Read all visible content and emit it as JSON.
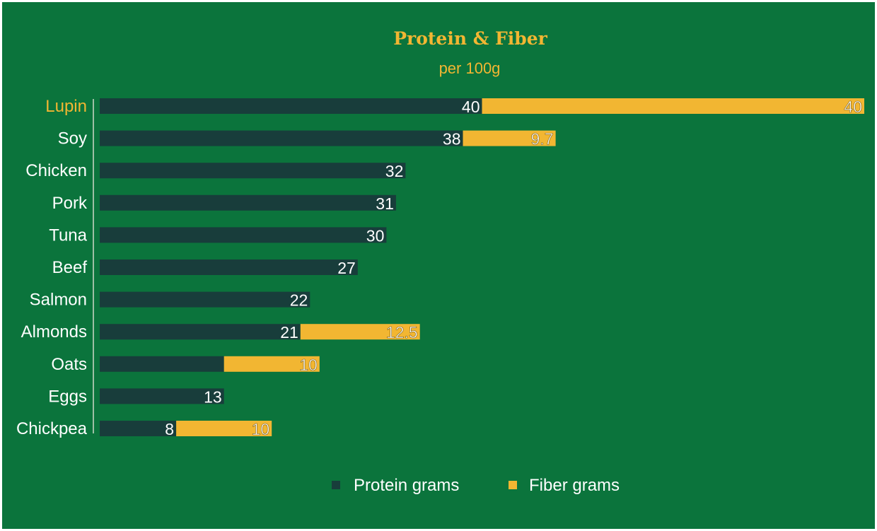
{
  "chart_data": {
    "type": "bar",
    "orientation": "horizontal",
    "stacked": true,
    "title": "Protein & Fiber",
    "subtitle": "per 100g",
    "categories": [
      "Lupin",
      "Soy",
      "Chicken",
      "Pork",
      "Tuna",
      "Beef",
      "Salmon",
      "Almonds",
      "Oats",
      "Eggs",
      "Chickpea"
    ],
    "highlighted_category": "Lupin",
    "series": [
      {
        "name": "Protein grams",
        "color": "#183d3b",
        "values": [
          40,
          38,
          32,
          31,
          30,
          27,
          22,
          21,
          13,
          13,
          8
        ],
        "labels": [
          "40",
          "38",
          "32",
          "31",
          "30",
          "27",
          "22",
          "21",
          "",
          "13",
          "8"
        ]
      },
      {
        "name": "Fiber grams",
        "color": "#f2b632",
        "values": [
          40,
          9.7,
          0,
          0,
          0,
          0,
          0,
          12.5,
          10,
          0,
          10
        ],
        "labels": [
          "40",
          "9.7",
          "",
          "",
          "",
          "",
          "",
          "12.5",
          "10",
          "",
          "10"
        ]
      }
    ],
    "xlim": [
      0,
      80
    ],
    "grid": false,
    "legend_position": "bottom"
  },
  "colors": {
    "background": "#0b743c",
    "title": "#f2b632",
    "highlight_label": "#f2b632",
    "text": "#ffffff",
    "axis_line": "#cfd8c8"
  }
}
